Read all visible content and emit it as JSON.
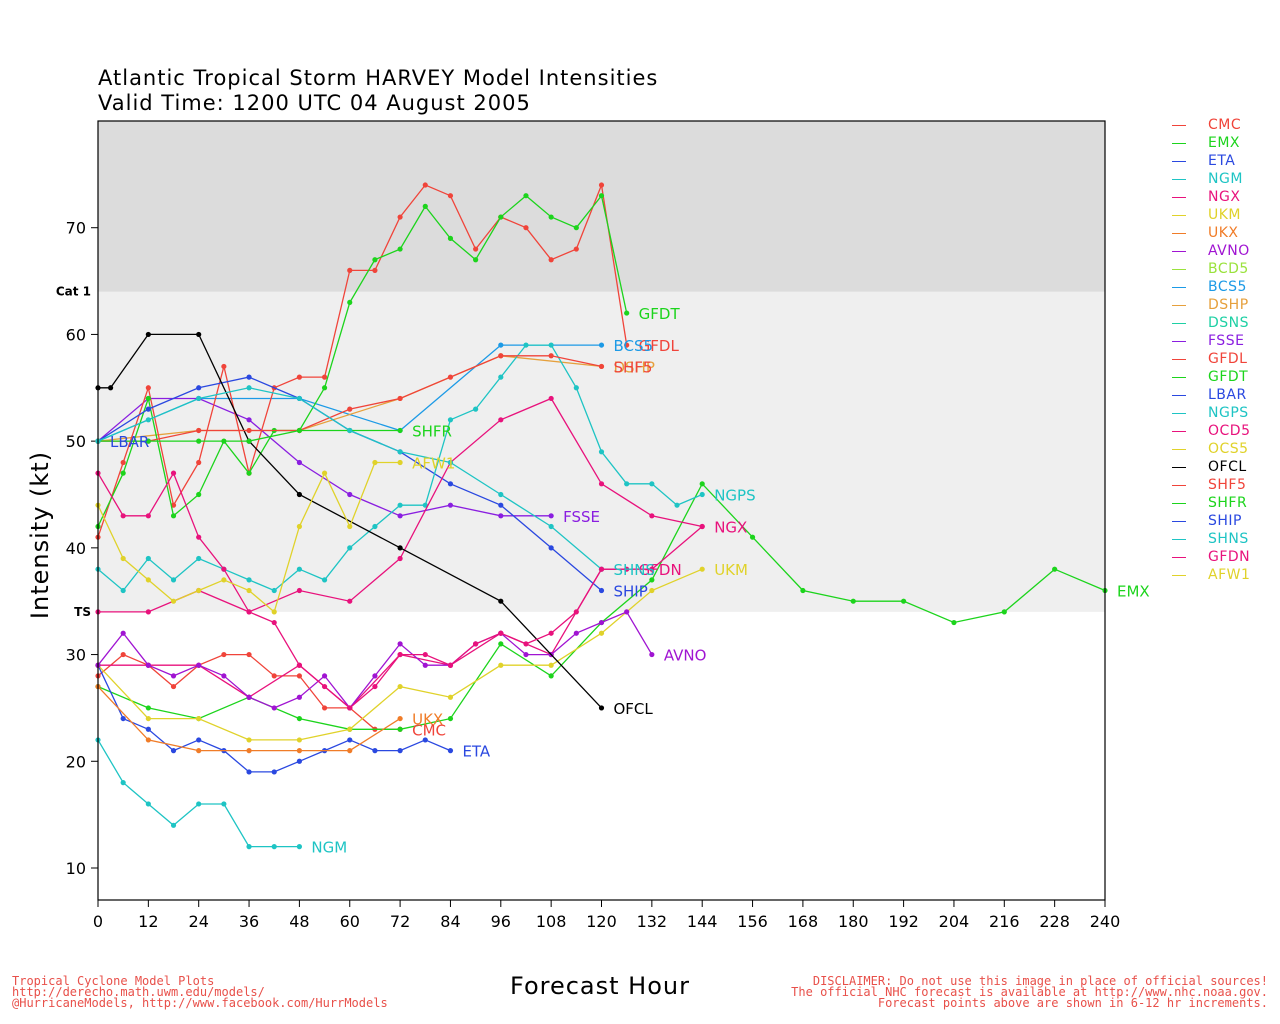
{
  "title_line1": "Atlantic Tropical Storm HARVEY Model Intensities",
  "title_line2": "Valid Time: 1200 UTC 04 August 2005",
  "footer_left": [
    "Tropical Cyclone Model Plots",
    "http://derecho.math.uwm.edu/models/",
    "@HurricaneModels, http://www.facebook.com/HurrModels"
  ],
  "footer_right": [
    "DISCLAIMER: Do not use this image in place of official sources!",
    "The official NHC forecast is available at http://www.nhc.noaa.gov.",
    "Forecast points above are shown in 6-12 hr increments."
  ],
  "chart_data": {
    "type": "line",
    "xlabel": "Forecast Hour",
    "ylabel": "Intensity (kt)",
    "xlim": [
      0,
      240
    ],
    "ylim": [
      7,
      80
    ],
    "xticks": [
      0,
      12,
      24,
      36,
      48,
      60,
      72,
      84,
      96,
      108,
      120,
      132,
      144,
      156,
      168,
      180,
      192,
      204,
      216,
      228,
      240
    ],
    "yticks": [
      10,
      20,
      30,
      40,
      50,
      60,
      70
    ],
    "bands": [
      {
        "from": 34,
        "to": 64,
        "color": "#efefef"
      },
      {
        "from": 64,
        "to": 80,
        "color": "#dcdcdc"
      }
    ],
    "thresholds": [
      {
        "label": "TS",
        "y": 34
      },
      {
        "label": "Cat 1",
        "y": 64
      }
    ],
    "legend_position": "right",
    "series": [
      {
        "name": "CMC",
        "color": "#f0443a",
        "x": [
          0,
          6,
          12,
          18,
          24,
          30,
          36,
          42,
          48,
          54,
          60,
          66,
          72
        ],
        "y": [
          28,
          30,
          29,
          27,
          29,
          30,
          30,
          28,
          28,
          25,
          25,
          23,
          23
        ]
      },
      {
        "name": "EMX",
        "color": "#1cd41c",
        "x": [
          0,
          12,
          24,
          36,
          48,
          60,
          72,
          84,
          96,
          108,
          120,
          132,
          144,
          156,
          168,
          180,
          192,
          204,
          216,
          228,
          240
        ],
        "y": [
          27,
          25,
          24,
          26,
          24,
          23,
          23,
          24,
          31,
          28,
          33,
          37,
          46,
          41,
          36,
          35,
          35,
          33,
          34,
          38,
          36
        ]
      },
      {
        "name": "ETA",
        "color": "#2a48e0",
        "x": [
          0,
          6,
          12,
          18,
          24,
          30,
          36,
          42,
          48,
          54,
          60,
          66,
          72,
          78,
          84
        ],
        "y": [
          29,
          24,
          23,
          21,
          22,
          21,
          19,
          19,
          20,
          21,
          22,
          21,
          21,
          22,
          21
        ]
      },
      {
        "name": "NGM",
        "color": "#1ec4c4",
        "x": [
          0,
          6,
          12,
          18,
          24,
          30,
          36,
          42,
          48
        ],
        "y": [
          22,
          18,
          16,
          14,
          16,
          16,
          12,
          12,
          12
        ]
      },
      {
        "name": "NGX",
        "color": "#e8127c",
        "x": [
          0,
          12,
          24,
          36,
          48,
          60,
          72,
          84,
          96,
          108,
          120,
          132,
          144
        ],
        "y": [
          29,
          29,
          29,
          26,
          29,
          25,
          30,
          29,
          32,
          30,
          38,
          38,
          42
        ]
      },
      {
        "name": "UKM",
        "color": "#e0d22a",
        "x": [
          0,
          12,
          24,
          36,
          48,
          60,
          72,
          84,
          96,
          108,
          120,
          132,
          144
        ],
        "y": [
          29,
          24,
          24,
          22,
          22,
          23,
          27,
          26,
          29,
          29,
          32,
          36,
          38
        ]
      },
      {
        "name": "UKX",
        "color": "#f07c28",
        "x": [
          0,
          12,
          24,
          36,
          48,
          60,
          72
        ],
        "y": [
          27,
          22,
          21,
          21,
          21,
          21,
          24
        ]
      },
      {
        "name": "AVNO",
        "color": "#a014d2",
        "x": [
          0,
          6,
          12,
          18,
          24,
          30,
          36,
          42,
          48,
          54,
          60,
          66,
          72,
          78,
          84,
          90,
          96,
          102,
          108,
          114,
          120,
          126,
          132
        ],
        "y": [
          29,
          32,
          29,
          28,
          29,
          28,
          26,
          25,
          26,
          28,
          25,
          28,
          31,
          29,
          29,
          31,
          32,
          30,
          30,
          32,
          33,
          34,
          30
        ]
      },
      {
        "name": "BCD5",
        "color": "#9ae23c",
        "x": [],
        "y": []
      },
      {
        "name": "BCS5",
        "color": "#1c9ae6",
        "x": [
          0,
          24,
          48,
          72,
          96,
          120
        ],
        "y": [
          50,
          54,
          54,
          51,
          59,
          59
        ]
      },
      {
        "name": "DSHP",
        "color": "#e6a03c",
        "x": [
          0,
          24,
          48,
          72,
          96,
          120
        ],
        "y": [
          50,
          51,
          51,
          54,
          58,
          57
        ]
      },
      {
        "name": "DSNS",
        "color": "#1ed0a4",
        "x": [],
        "y": []
      },
      {
        "name": "FSSE",
        "color": "#8a1ee0",
        "x": [
          0,
          12,
          24,
          36,
          48,
          60,
          72,
          84,
          96,
          108
        ],
        "y": [
          50,
          54,
          54,
          52,
          48,
          45,
          43,
          44,
          43,
          43
        ]
      },
      {
        "name": "GFDL",
        "color": "#f0443a",
        "x": [
          0,
          6,
          12,
          18,
          24,
          30,
          36,
          42,
          48,
          54,
          60,
          66,
          72,
          78,
          84,
          90,
          96,
          102,
          108,
          114,
          120,
          126
        ],
        "y": [
          41,
          48,
          55,
          44,
          48,
          57,
          47,
          55,
          56,
          56,
          66,
          66,
          71,
          74,
          73,
          68,
          71,
          70,
          67,
          68,
          74,
          59
        ]
      },
      {
        "name": "GFDT",
        "color": "#1cd41c",
        "x": [
          0,
          6,
          12,
          18,
          24,
          30,
          36,
          42,
          48,
          54,
          60,
          66,
          72,
          78,
          84,
          90,
          96,
          102,
          108,
          114,
          120,
          126
        ],
        "y": [
          42,
          47,
          54,
          43,
          45,
          50,
          47,
          51,
          51,
          55,
          63,
          67,
          68,
          72,
          69,
          67,
          71,
          73,
          71,
          70,
          73,
          62
        ]
      },
      {
        "name": "LBAR",
        "color": "#2a48e0",
        "x": [
          0,
          12,
          24,
          36,
          48,
          60,
          72,
          84,
          96,
          108,
          120
        ],
        "y": [
          50,
          53,
          55,
          56,
          54,
          51,
          49,
          46,
          44,
          40,
          36
        ]
      },
      {
        "name": "NGPS",
        "color": "#1ec4c4",
        "x": [
          0,
          6,
          12,
          18,
          24,
          30,
          36,
          42,
          48,
          54,
          60,
          66,
          72,
          78,
          84,
          90,
          96,
          102,
          108,
          114,
          120,
          126,
          132,
          138,
          144
        ],
        "y": [
          38,
          36,
          39,
          37,
          39,
          38,
          37,
          36,
          38,
          37,
          40,
          42,
          44,
          44,
          52,
          53,
          56,
          59,
          59,
          55,
          49,
          46,
          46,
          44,
          45
        ]
      },
      {
        "name": "OCD5",
        "color": "#e8127c",
        "x": [
          0,
          12,
          24,
          36,
          48,
          60,
          72,
          84,
          96,
          108,
          120,
          132,
          144
        ],
        "y": [
          34,
          34,
          36,
          34,
          36,
          35,
          39,
          48,
          52,
          54,
          46,
          43,
          42
        ]
      },
      {
        "name": "OCS5",
        "color": "#e0d22a",
        "x": [],
        "y": []
      },
      {
        "name": "OFCL",
        "color": "#000000",
        "x": [
          0,
          3,
          12,
          24,
          36,
          48,
          72,
          96,
          120
        ],
        "y": [
          55,
          55,
          60,
          60,
          50,
          45,
          40,
          35,
          25
        ]
      },
      {
        "name": "SHF5",
        "color": "#f0443a",
        "x": [
          0,
          12,
          24,
          36,
          48,
          60,
          72,
          84,
          96,
          108,
          120
        ],
        "y": [
          50,
          50,
          51,
          51,
          51,
          53,
          54,
          56,
          58,
          58,
          57
        ]
      },
      {
        "name": "SHFR",
        "color": "#1cd41c",
        "x": [
          0,
          12,
          24,
          36,
          48,
          60,
          72
        ],
        "y": [
          50,
          50,
          50,
          50,
          51,
          51,
          51
        ]
      },
      {
        "name": "SHIP",
        "color": "#2a48e0",
        "x": [],
        "y": []
      },
      {
        "name": "SHNS",
        "color": "#1ec4c4",
        "x": [
          0,
          12,
          24,
          36,
          48,
          60,
          72,
          84,
          96,
          108,
          120
        ],
        "y": [
          50,
          52,
          54,
          55,
          54,
          51,
          49,
          48,
          45,
          42,
          38
        ]
      },
      {
        "name": "GFDN",
        "color": "#e8127c",
        "x": [
          0,
          6,
          12,
          18,
          24,
          30,
          36,
          42,
          48,
          54,
          60,
          66,
          72,
          78,
          84,
          90,
          96,
          102,
          108,
          114,
          120,
          126
        ],
        "y": [
          47,
          43,
          43,
          47,
          41,
          38,
          34,
          33,
          29,
          27,
          25,
          27,
          30,
          30,
          29,
          31,
          32,
          31,
          32,
          34,
          38,
          38
        ]
      },
      {
        "name": "AFW1",
        "color": "#e0d22a",
        "x": [
          0,
          6,
          12,
          18,
          24,
          30,
          36,
          42,
          48,
          54,
          60,
          66,
          72
        ],
        "y": [
          44,
          39,
          37,
          35,
          36,
          37,
          36,
          34,
          42,
          47,
          42,
          48,
          48
        ]
      }
    ],
    "end_labels": [
      {
        "text": "LBAR",
        "series": "LBAR",
        "x": 0,
        "y": 50
      },
      {
        "text": "SHFR",
        "series": "SHFR",
        "x": 72,
        "y": 51
      },
      {
        "text": "AFW1",
        "series": "AFW1",
        "x": 72,
        "y": 48
      },
      {
        "text": "GFDT",
        "series": "GFDT",
        "x": 126,
        "y": 62
      },
      {
        "text": "GFDL",
        "series": "GFDL",
        "x": 126,
        "y": 59
      },
      {
        "text": "BCS5",
        "series": "BCS5",
        "x": 120,
        "y": 59
      },
      {
        "text": "DSHP",
        "series": "DSHP",
        "x": 120,
        "y": 57
      },
      {
        "text": "SHF5",
        "series": "SHF5",
        "x": 120,
        "y": 57
      },
      {
        "text": "FSSE",
        "series": "FSSE",
        "x": 108,
        "y": 43
      },
      {
        "text": "NGPS",
        "series": "NGPS",
        "x": 144,
        "y": 45
      },
      {
        "text": "NGX",
        "series": "NGX",
        "x": 144,
        "y": 42
      },
      {
        "text": "GFDN",
        "series": "GFDN",
        "x": 126,
        "y": 38
      },
      {
        "text": "SHNS",
        "series": "SHNS",
        "x": 120,
        "y": 38
      },
      {
        "text": "SHIP",
        "series": "LBAR",
        "x": 120,
        "y": 36
      },
      {
        "text": "UKM",
        "series": "UKM",
        "x": 144,
        "y": 38
      },
      {
        "text": "EMX",
        "series": "EMX",
        "x": 240,
        "y": 36
      },
      {
        "text": "AVNO",
        "series": "AVNO",
        "x": 132,
        "y": 30
      },
      {
        "text": "OFCL",
        "series": "OFCL",
        "x": 120,
        "y": 25
      },
      {
        "text": "UKX",
        "series": "UKX",
        "x": 72,
        "y": 24
      },
      {
        "text": "CMC",
        "series": "CMC",
        "x": 72,
        "y": 23
      },
      {
        "text": "ETA",
        "series": "ETA",
        "x": 84,
        "y": 21
      },
      {
        "text": "NGM",
        "series": "NGM",
        "x": 48,
        "y": 12
      }
    ]
  }
}
